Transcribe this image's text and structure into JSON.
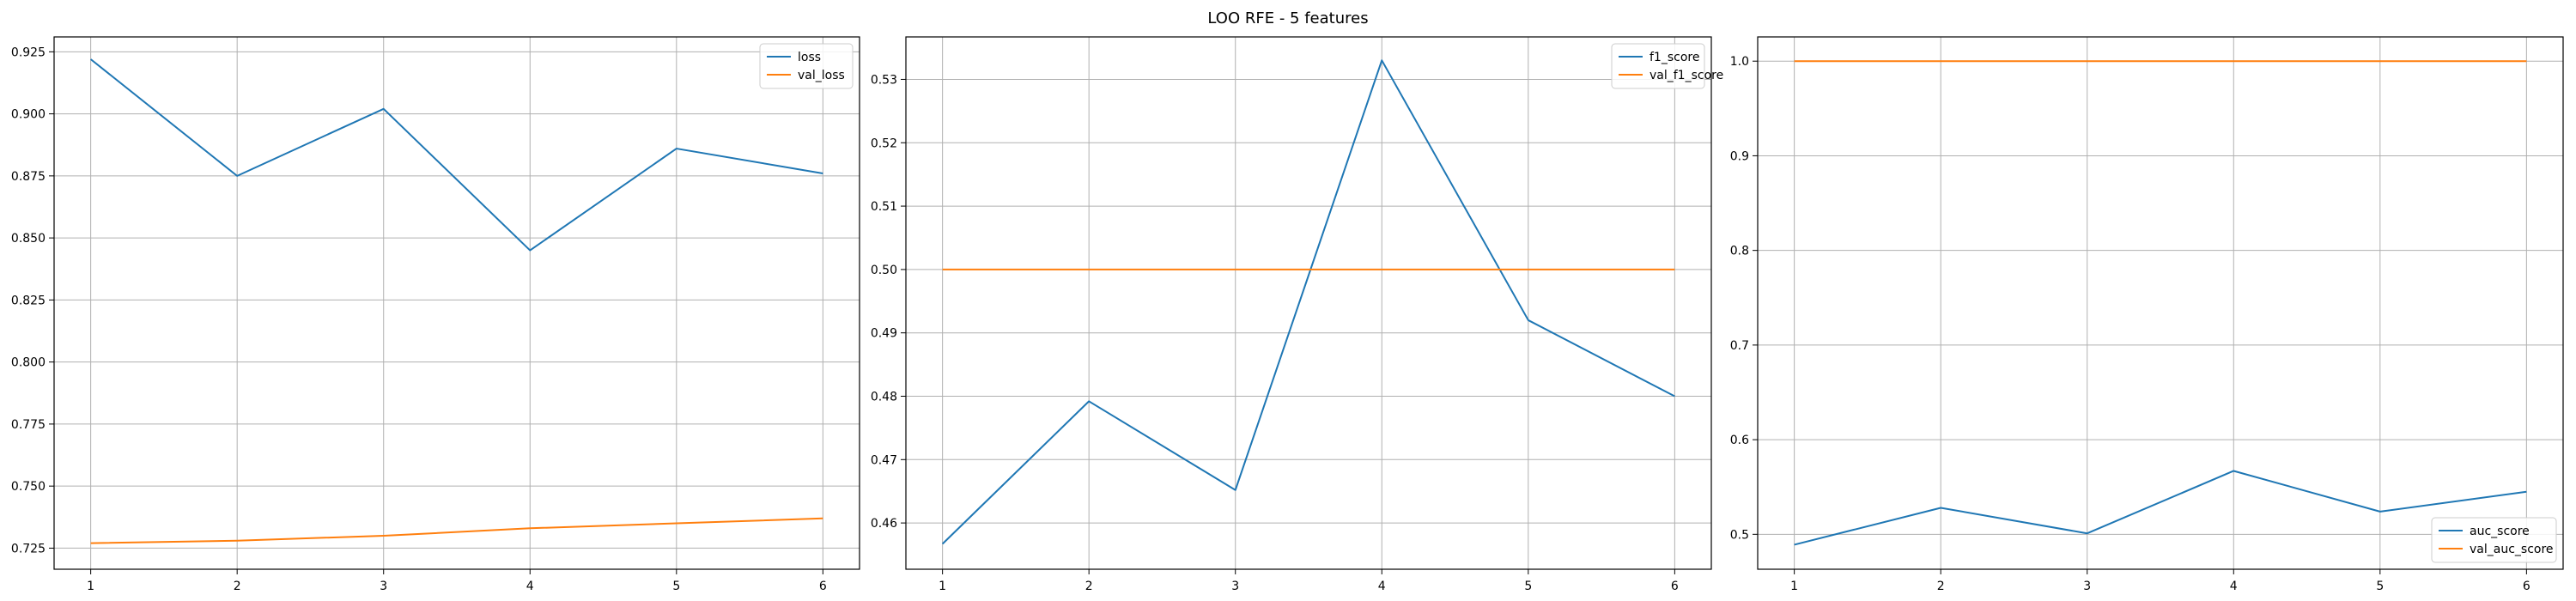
{
  "figure": {
    "title": "LOO RFE - 5 features"
  },
  "colors": {
    "train": "#1f77b4",
    "validation": "#ff7f0e",
    "grid": "#b0b0b0",
    "axes": "#000000"
  },
  "chart_data": [
    {
      "type": "line",
      "title": "",
      "xlabel": "",
      "ylabel": "",
      "grid": true,
      "legend_position": "top-right",
      "x": [
        1,
        2,
        3,
        4,
        5,
        6
      ],
      "xlim": [
        0.75,
        6.25
      ],
      "ylim": [
        0.7165,
        0.931
      ],
      "xticks": [
        1,
        2,
        3,
        4,
        5,
        6
      ],
      "yticks": [
        0.725,
        0.75,
        0.775,
        0.8,
        0.825,
        0.85,
        0.875,
        0.9,
        0.925
      ],
      "ytick_decimals": 3,
      "series": [
        {
          "name": "loss",
          "color": "#1f77b4",
          "values": [
            0.922,
            0.875,
            0.902,
            0.845,
            0.886,
            0.876
          ]
        },
        {
          "name": "val_loss",
          "color": "#ff7f0e",
          "values": [
            0.727,
            0.728,
            0.73,
            0.733,
            0.735,
            0.737
          ]
        }
      ]
    },
    {
      "type": "line",
      "title": "",
      "xlabel": "",
      "ylabel": "",
      "grid": true,
      "legend_position": "top-right",
      "x": [
        1,
        2,
        3,
        4,
        5,
        6
      ],
      "xlim": [
        0.75,
        6.25
      ],
      "ylim": [
        0.4527,
        0.5367
      ],
      "xticks": [
        1,
        2,
        3,
        4,
        5,
        6
      ],
      "yticks": [
        0.46,
        0.47,
        0.48,
        0.49,
        0.5,
        0.51,
        0.52,
        0.53
      ],
      "ytick_decimals": 2,
      "series": [
        {
          "name": "f1_score",
          "color": "#1f77b4",
          "values": [
            0.4567,
            0.4792,
            0.4652,
            0.533,
            0.492,
            0.48
          ]
        },
        {
          "name": "val_f1_score",
          "color": "#ff7f0e",
          "values": [
            0.5,
            0.5,
            0.5,
            0.5,
            0.5,
            0.5
          ]
        }
      ]
    },
    {
      "type": "line",
      "title": "",
      "xlabel": "",
      "ylabel": "",
      "grid": true,
      "legend_position": "bottom-right",
      "x": [
        1,
        2,
        3,
        4,
        5,
        6
      ],
      "xlim": [
        0.75,
        6.25
      ],
      "ylim": [
        0.4631,
        1.0256
      ],
      "xticks": [
        1,
        2,
        3,
        4,
        5,
        6
      ],
      "yticks": [
        0.5,
        0.6,
        0.7,
        0.8,
        0.9,
        1.0
      ],
      "ytick_decimals": 1,
      "series": [
        {
          "name": "auc_score",
          "color": "#1f77b4",
          "values": [
            0.489,
            0.528,
            0.501,
            0.567,
            0.524,
            0.545
          ]
        },
        {
          "name": "val_auc_score",
          "color": "#ff7f0e",
          "values": [
            1.0,
            1.0,
            1.0,
            1.0,
            1.0,
            1.0
          ]
        }
      ]
    }
  ]
}
